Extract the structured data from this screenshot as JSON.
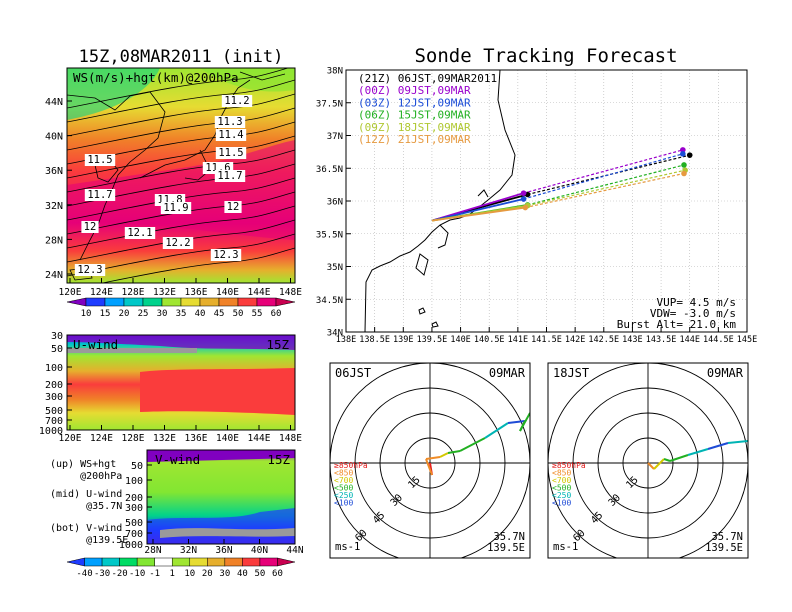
{
  "titles": {
    "left": "15Z,08MAR2011 (init)",
    "right": "Sonde Tracking Forecast"
  },
  "ws_map": {
    "label": "WS(m/s)+hgt(km)@200hPa",
    "lat_ticks": [
      "44N",
      "40N",
      "36N",
      "32N",
      "28N",
      "24N"
    ],
    "lon_ticks": [
      "120E",
      "124E",
      "128E",
      "132E",
      "136E",
      "140E",
      "144E",
      "148E"
    ],
    "contour_labels": [
      "11.2",
      "11.3",
      "11.4",
      "11.5",
      "11.5",
      "11.6",
      "11.7",
      "11.7",
      "11.8",
      "11.9",
      "12",
      "12",
      "12.1",
      "12.2",
      "12.3",
      "12.3"
    ],
    "colorbar": {
      "values": [
        "10",
        "15",
        "20",
        "25",
        "30",
        "35",
        "40",
        "45",
        "50",
        "55",
        "60"
      ],
      "colors": [
        "#8000c0",
        "#1e3cff",
        "#00a0ff",
        "#00c8c8",
        "#00d28c",
        "#a0e632",
        "#e6dc32",
        "#e6af2d",
        "#f08228",
        "#fa3c3c",
        "#e60078",
        "#c80050"
      ]
    }
  },
  "u_section": {
    "label": "U-wind",
    "time": "15Z",
    "p_ticks": [
      "30",
      "50",
      "100",
      "200",
      "300",
      "500",
      "700",
      "1000"
    ],
    "lon_ticks": [
      "120E",
      "124E",
      "128E",
      "132E",
      "136E",
      "140E",
      "144E",
      "148E"
    ]
  },
  "v_section": {
    "label": "V-wind",
    "time": "15Z",
    "p_ticks": [
      "50",
      "100",
      "200",
      "300",
      "500",
      "700",
      "1000"
    ],
    "lat_ticks": [
      "28N",
      "32N",
      "36N",
      "40N",
      "44N"
    ],
    "colorbar": {
      "values": [
        "-40",
        "-30",
        "-20",
        "-10",
        "-1",
        "1",
        "10",
        "20",
        "30",
        "40",
        "50",
        "60"
      ],
      "colors": [
        "#1e3cff",
        "#00a0ff",
        "#00c8c8",
        "#00dc64",
        "#82e632",
        "#ffffff",
        "#a0e632",
        "#e6dc32",
        "#e6af2d",
        "#f08228",
        "#fa3c3c",
        "#e60078",
        "#c80050"
      ]
    }
  },
  "captions": [
    "(up) WS+hgt",
    "     @200hPa",
    "(mid) U-wind",
    "      @35.7N",
    "(bot) V-wind",
    "      @139.5E"
  ],
  "tracking": {
    "lat_ticks": [
      "38N",
      "37.5N",
      "37N",
      "36.5N",
      "36N",
      "35.5N",
      "35N",
      "34.5N",
      "34N"
    ],
    "lon_ticks": [
      "138E",
      "138.5E",
      "139E",
      "139.5E",
      "140E",
      "140.5E",
      "141E",
      "141.5E",
      "142E",
      "142.5E",
      "143E",
      "143.5E",
      "144E",
      "144.5E",
      "145E"
    ],
    "launches": [
      {
        "label": "(21Z) 06JST,09MAR2011",
        "color": "#000000",
        "dot_lon": 141.17,
        "dot_lat": 36.1,
        "end_lon": 144.0,
        "end_lat": 36.7
      },
      {
        "label": "(00Z) 09JST,09MAR",
        "color": "#9900cc",
        "dot_lon": 141.1,
        "dot_lat": 36.12,
        "end_lon": 143.88,
        "end_lat": 36.78
      },
      {
        "label": "(03Z) 12JST,09MAR",
        "color": "#1a4bd6",
        "dot_lon": 141.1,
        "dot_lat": 36.03,
        "end_lon": 143.88,
        "end_lat": 36.72
      },
      {
        "label": "(06Z) 15JST,09MAR",
        "color": "#22b022",
        "dot_lon": 141.17,
        "dot_lat": 35.94,
        "end_lon": 143.9,
        "end_lat": 36.55
      },
      {
        "label": "(09Z) 18JST,09MAR",
        "color": "#b0c832",
        "dot_lon": 141.17,
        "dot_lat": 35.93,
        "end_lon": 143.92,
        "end_lat": 36.47
      },
      {
        "label": "(12Z) 21JST,09MAR",
        "color": "#e69a40",
        "dot_lon": 141.13,
        "dot_lat": 35.9,
        "end_lon": 143.9,
        "end_lat": 36.42
      }
    ],
    "params": [
      "VUP= 4.5 m/s",
      "VDW= -3.0 m/s",
      "Burst Alt= 21.0 km"
    ]
  },
  "hodographs": [
    {
      "label": "06JST",
      "date": "09MAR",
      "unit": "ms-1",
      "lat": "35.7N",
      "lon": "139.5E"
    },
    {
      "label": "18JST",
      "date": "09MAR",
      "unit": "ms-1",
      "lat": "35.7N",
      "lon": "139.5E"
    }
  ],
  "hodo_rings": [
    "15",
    "30",
    "45",
    "60"
  ],
  "hodo_legend": [
    {
      "text": "≥850hPa",
      "color": "#e62020"
    },
    {
      "text": "<850",
      "color": "#f08c28"
    },
    {
      "text": "<700",
      "color": "#d2c800"
    },
    {
      "text": "<500",
      "color": "#22b022"
    },
    {
      "text": "<250",
      "color": "#00b4b4"
    },
    {
      "text": "<100",
      "color": "#1e4bd6"
    }
  ]
}
